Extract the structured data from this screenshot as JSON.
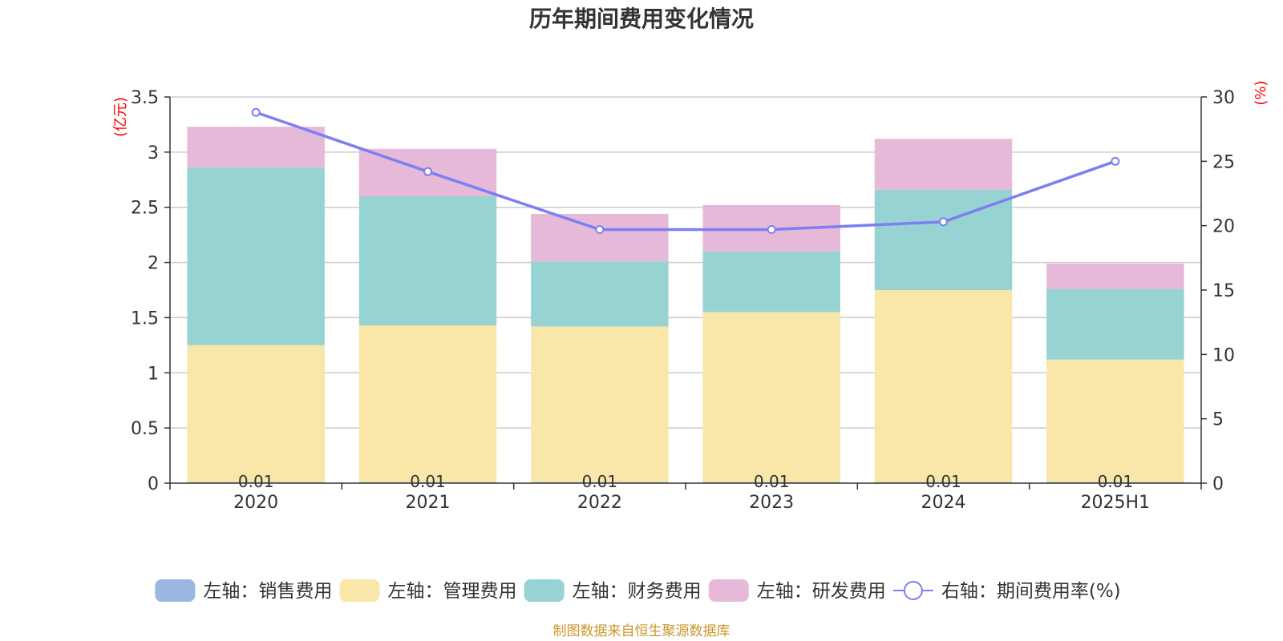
{
  "chart_data": {
    "type": "bar",
    "title": "历年期间费用变化情况",
    "categories": [
      "2020",
      "2021",
      "2022",
      "2023",
      "2024",
      "2025H1"
    ],
    "y_left": {
      "unit": "(亿元)",
      "ylim": [
        0,
        3.5
      ],
      "ticks": [
        "0",
        "0.5",
        "1",
        "1.5",
        "2",
        "2.5",
        "3",
        "3.5"
      ]
    },
    "y_right": {
      "unit": "(%)",
      "ylim": [
        0,
        30
      ],
      "ticks": [
        "0",
        "5",
        "10",
        "15",
        "20",
        "25",
        "30"
      ]
    },
    "stacked": true,
    "series": [
      {
        "name": "左轴：销售费用",
        "kind": "bar",
        "axis": "left",
        "color": "#9bb6e0",
        "values": [
          0.01,
          0.01,
          0.01,
          0.01,
          0.01,
          0.01
        ],
        "labels": [
          "0.01",
          "0.01",
          "0.01",
          "0.01",
          "0.01",
          "0.01"
        ]
      },
      {
        "name": "左轴：管理费用",
        "kind": "bar",
        "axis": "left",
        "color": "#f8e7a8",
        "values": [
          1.24,
          1.42,
          1.41,
          1.54,
          1.74,
          1.11
        ]
      },
      {
        "name": "左轴：财务费用",
        "kind": "bar",
        "axis": "left",
        "color": "#98d3d4",
        "values": [
          1.61,
          1.17,
          0.59,
          0.55,
          0.91,
          0.64
        ]
      },
      {
        "name": "左轴：研发费用",
        "kind": "bar",
        "axis": "left",
        "color": "#e6b9d9",
        "values": [
          0.37,
          0.43,
          0.43,
          0.42,
          0.46,
          0.23
        ]
      },
      {
        "name": "右轴：期间费用率(%)",
        "kind": "line",
        "axis": "right",
        "color": "#7b7ff0",
        "values": [
          28.8,
          24.2,
          19.7,
          19.7,
          20.3,
          25.0
        ]
      }
    ],
    "grid": true,
    "legend_position": "bottom"
  },
  "source_note": "制图数据来自恒生聚源数据库"
}
